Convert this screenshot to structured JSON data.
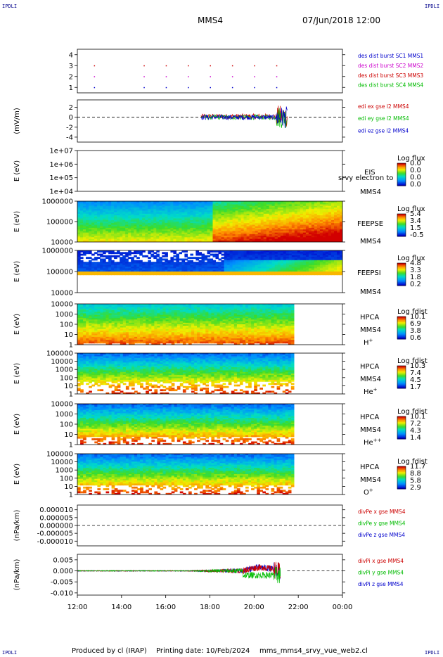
{
  "corner_label": "IPDLI",
  "header": {
    "spacecraft": "MMS4",
    "datetime": "07/Jun/2018 12:00"
  },
  "footer": {
    "produced_by": "Produced by cl (IRAP)",
    "printing_date": "Printing date: 10/Feb/2024",
    "filename": "mms_mms4_srvy_vue_web2.cl"
  },
  "chart_data": {
    "type": "stacked time-series panels",
    "x_ticks": [
      "12:00",
      "14:00",
      "16:00",
      "18:00",
      "20:00",
      "22:00",
      "00:00"
    ],
    "x_range_hours": [
      12,
      24
    ],
    "panels": [
      {
        "id": "burst",
        "type": "scatter",
        "y_ticks": [
          "4",
          "3",
          "2",
          "1"
        ],
        "ylim": [
          0.5,
          4.5
        ],
        "series": [
          {
            "name": "des dist burst SC1 MMS1",
            "color": "#0000cc",
            "y": 1,
            "x": [
              12.75,
              15.0,
              16.0,
              17.0,
              18.0,
              19.0,
              20.0,
              21.0
            ]
          },
          {
            "name": "des dist burst SC2 MMS2",
            "color": "#cc00cc",
            "y": 2,
            "x": [
              12.75,
              15.0,
              16.0,
              17.0,
              18.0,
              19.0,
              20.0,
              21.0
            ]
          },
          {
            "name": "des dist burst SC3 MMS3",
            "color": "#cc0000",
            "y": 3,
            "x": [
              12.75,
              15.0,
              16.0,
              17.0,
              18.0,
              19.0,
              20.0,
              21.0
            ]
          },
          {
            "name": "des dist burst SC4 MMS4",
            "color": "#00bb00",
            "y": 4,
            "x": []
          }
        ],
        "legend": [
          "des dist burst SC1 MMS1",
          "des dist burst SC2 MMS2",
          "des dist burst SC3 MMS3",
          "des dist burst SC4 MMS4"
        ]
      },
      {
        "id": "efield",
        "type": "line",
        "ylabel": "(mV/m)",
        "y_ticks": [
          "2",
          "0",
          "-2",
          "-4"
        ],
        "ylim": [
          -5,
          3.5
        ],
        "data_start_hour": 17.6,
        "spike_hour": 21.3,
        "series": [
          {
            "name": "edi ex gse l2 MMS4",
            "color": "#cc0000"
          },
          {
            "name": "edi ey gse l2 MMS4",
            "color": "#00bb00"
          },
          {
            "name": "edi ez gse l2 MMS4",
            "color": "#0000cc"
          }
        ]
      },
      {
        "id": "eis",
        "type": "heatmap",
        "ylabel": "E (eV)",
        "y_ticks": [
          "1e+07",
          "1e+06",
          "1e+05",
          "1e+04"
        ],
        "log_y": [
          4,
          7
        ],
        "labels": [
          "EIS",
          "srvy electron to",
          "MMS4"
        ],
        "colorbar": {
          "title": "Log flux",
          "ticks": [
            "0.0",
            "0.0",
            "0.0",
            "0.0"
          ]
        }
      },
      {
        "id": "feepse",
        "type": "heatmap",
        "ylabel": "E (eV)",
        "y_ticks": [
          "1000000",
          "100000",
          "10000"
        ],
        "log_y": [
          4,
          6
        ],
        "labels": [
          "FEEPSE",
          "MMS4"
        ],
        "colorbar": {
          "title": "Log flux",
          "ticks": [
            "5.4",
            "3.4",
            "1.5",
            "-0.5"
          ]
        }
      },
      {
        "id": "feepsi",
        "type": "heatmap",
        "ylabel": "E (eV)",
        "y_ticks": [
          "1000000",
          "100000",
          "10000"
        ],
        "log_y": [
          4,
          6
        ],
        "labels": [
          "FEEPSI",
          "MMS4"
        ],
        "colorbar": {
          "title": "Log flux",
          "ticks": [
            "4.8",
            "3.3",
            "1.8",
            "0.2"
          ]
        }
      },
      {
        "id": "hpca_h",
        "type": "heatmap",
        "ylabel": "E (eV)",
        "y_ticks": [
          "10000",
          "1000",
          "100",
          "10",
          "1"
        ],
        "log_y": [
          0,
          4.5
        ],
        "data_end_hour": 21.8,
        "labels": [
          "HPCA",
          "MMS4",
          "H+"
        ],
        "colorbar": {
          "title": "Log fdist",
          "ticks": [
            "10.1",
            "6.9",
            "3.8",
            "0.6"
          ]
        }
      },
      {
        "id": "hpca_he",
        "type": "heatmap",
        "ylabel": "E (eV)",
        "y_ticks": [
          "100000",
          "10000",
          "1000",
          "100",
          "10",
          "1"
        ],
        "log_y": [
          0,
          5
        ],
        "data_end_hour": 21.8,
        "labels": [
          "HPCA",
          "MMS4",
          "He+"
        ],
        "colorbar": {
          "title": "Log fdist",
          "ticks": [
            "10.3",
            "7.4",
            "4.5",
            "1.7"
          ]
        }
      },
      {
        "id": "hpca_hepp",
        "type": "heatmap",
        "ylabel": "E (eV)",
        "y_ticks": [
          "10000",
          "1000",
          "100",
          "10",
          "1"
        ],
        "log_y": [
          0,
          4.5
        ],
        "data_end_hour": 21.8,
        "labels": [
          "HPCA",
          "MMS4",
          "He++"
        ],
        "colorbar": {
          "title": "Log fdist",
          "ticks": [
            "10.1",
            "7.2",
            "4.3",
            "1.4"
          ]
        }
      },
      {
        "id": "hpca_o",
        "type": "heatmap",
        "ylabel": "E (eV)",
        "y_ticks": [
          "100000",
          "10000",
          "1000",
          "100",
          "10",
          "1"
        ],
        "log_y": [
          0,
          5
        ],
        "data_end_hour": 21.8,
        "labels": [
          "HPCA",
          "MMS4",
          "O+"
        ],
        "colorbar": {
          "title": "Log fdist",
          "ticks": [
            "11.7",
            "8.8",
            "5.8",
            "2.9"
          ]
        }
      },
      {
        "id": "divpe",
        "type": "line",
        "ylabel": "(nPa/km)",
        "y_ticks": [
          "0.000010",
          "0.000005",
          "0.000000",
          "-0.000005",
          "-0.000010"
        ],
        "ylim": [
          -1.3e-05,
          1.3e-05
        ],
        "series": [
          {
            "name": "divPe x gse MMS4",
            "color": "#cc0000"
          },
          {
            "name": "divPe y gse MMS4",
            "color": "#00bb00"
          },
          {
            "name": "divPe z gse MMS4",
            "color": "#0000cc"
          }
        ]
      },
      {
        "id": "divpi",
        "type": "line",
        "ylabel": "(nPa/km)",
        "y_ticks": [
          "0.005",
          "0.000",
          "-0.005",
          "-0.010"
        ],
        "ylim": [
          -0.011,
          0.0075
        ],
        "series": [
          {
            "name": "divPi x gse MMS4",
            "color": "#cc0000"
          },
          {
            "name": "divPi y gse MMS4",
            "color": "#00bb00"
          },
          {
            "name": "divPi z gse MMS4",
            "color": "#0000cc"
          }
        ]
      }
    ]
  }
}
